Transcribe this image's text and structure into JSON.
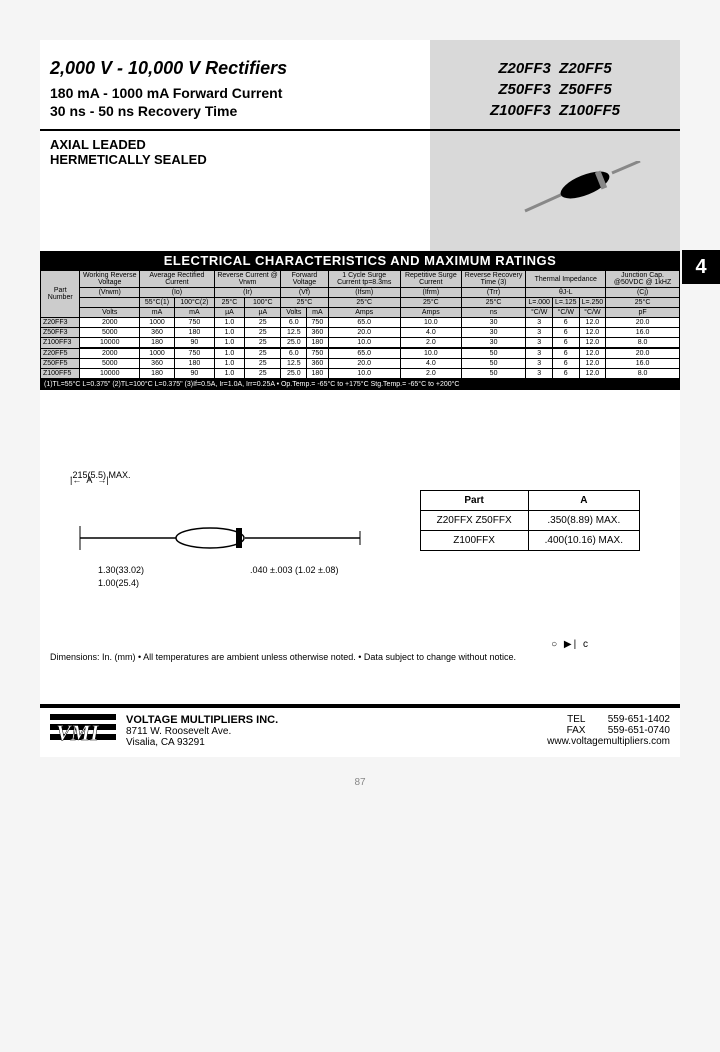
{
  "header": {
    "title": "2,000 V - 10,000 V Rectifiers",
    "sub1": "180 mA - 1000 mA Forward Current",
    "sub2": "30 ns - 50 ns Recovery Time",
    "parts": [
      [
        "Z20FF3",
        "Z20FF5"
      ],
      [
        "Z50FF3",
        "Z50FF5"
      ],
      [
        "Z100FF3",
        "Z100FF5"
      ]
    ]
  },
  "package": {
    "l1": "AXIAL LEADED",
    "l2": "HERMETICALLY SEALED"
  },
  "section_marker": "4",
  "table": {
    "title": "ELECTRICAL CHARACTERISTICS AND MAXIMUM RATINGS",
    "headers_row1": [
      "Part Number",
      "Working Reverse Voltage",
      "Average Rectified Current",
      "",
      "Reverse Current @ Vrwm",
      "",
      "Forward Voltage",
      "",
      "1 Cycle Surge Current tp=8.3ms",
      "Repetitive Surge Current",
      "Reverse Recovery Time (3)",
      "Thermal Impedance",
      "",
      "",
      "Junction Cap. @50VDC @ 1kHZ"
    ],
    "headers_row2": [
      "",
      "(Vrwm)",
      "(Io)",
      "",
      "(Ir)",
      "",
      "(Vf)",
      "",
      "(Ifsm)",
      "(Ifrm)",
      "(Trr)",
      "θJ-L",
      "",
      "",
      "(Cj)"
    ],
    "headers_row3": [
      "",
      "",
      "55°C(1)",
      "100°C(2)",
      "25°C",
      "100°C",
      "25°C",
      "",
      "25°C",
      "25°C",
      "25°C",
      "L=.000",
      "L=.125",
      "L=.250",
      "25°C"
    ],
    "headers_row4": [
      "",
      "Volts",
      "mA",
      "mA",
      "µA",
      "µA",
      "Volts",
      "mA",
      "Amps",
      "Amps",
      "ns",
      "°C/W",
      "°C/W",
      "°C/W",
      "pF"
    ],
    "rows": [
      [
        "Z20FF3",
        "2000",
        "1000",
        "750",
        "1.0",
        "25",
        "6.0",
        "750",
        "65.0",
        "10.0",
        "30",
        "3",
        "6",
        "12.0",
        "20.0"
      ],
      [
        "Z50FF3",
        "5000",
        "360",
        "180",
        "1.0",
        "25",
        "12.5",
        "360",
        "20.0",
        "4.0",
        "30",
        "3",
        "6",
        "12.0",
        "16.0"
      ],
      [
        "Z100FF3",
        "10000",
        "180",
        "90",
        "1.0",
        "25",
        "25.0",
        "180",
        "10.0",
        "2.0",
        "30",
        "3",
        "6",
        "12.0",
        "8.0"
      ],
      [
        "Z20FF5",
        "2000",
        "1000",
        "750",
        "1.0",
        "25",
        "6.0",
        "750",
        "65.0",
        "10.0",
        "50",
        "3",
        "6",
        "12.0",
        "20.0"
      ],
      [
        "Z50FF5",
        "5000",
        "360",
        "180",
        "1.0",
        "25",
        "12.5",
        "360",
        "20.0",
        "4.0",
        "50",
        "3",
        "6",
        "12.0",
        "16.0"
      ],
      [
        "Z100FF5",
        "10000",
        "180",
        "90",
        "1.0",
        "25",
        "25.0",
        "180",
        "10.0",
        "2.0",
        "50",
        "3",
        "6",
        "12.0",
        "8.0"
      ]
    ],
    "footnote": "(1)TL=55°C L=0.375\" (2)TL=100°C L=0.375\" (3)If=0.5A, Ir=1.0A, Irr=0.25A • Op.Temp.= -65°C to +175°C  Stg.Temp.= -65°C to +200°C"
  },
  "dims": {
    "d215": ".215(5.5) MAX.",
    "dA_label": "A",
    "d130": "1.30(33.02)",
    "d100": "1.00(25.4)",
    "d040": ".040 ±.003 (1.02 ±.08)",
    "table": {
      "h": [
        "Part",
        "A"
      ],
      "r1": [
        "Z20FFX Z50FFX",
        ".350(8.89) MAX."
      ],
      "r2": [
        "Z100FFX",
        ".400(10.16) MAX."
      ]
    }
  },
  "cathode_note": "○   ▶|   c",
  "dim_note": "Dimensions: In. (mm) • All temperatures are ambient unless otherwise noted. • Data subject to change without notice.",
  "footer": {
    "logo": "VMI",
    "company": "VOLTAGE MULTIPLIERS  INC.",
    "addr1": "8711 W. Roosevelt Ave.",
    "addr2": "Visalia, CA 93291",
    "tel_l": "TEL",
    "tel": "559-651-1402",
    "fax_l": "FAX",
    "fax": "559-651-0740",
    "web": "www.voltagemultipliers.com"
  },
  "page_no": "87"
}
